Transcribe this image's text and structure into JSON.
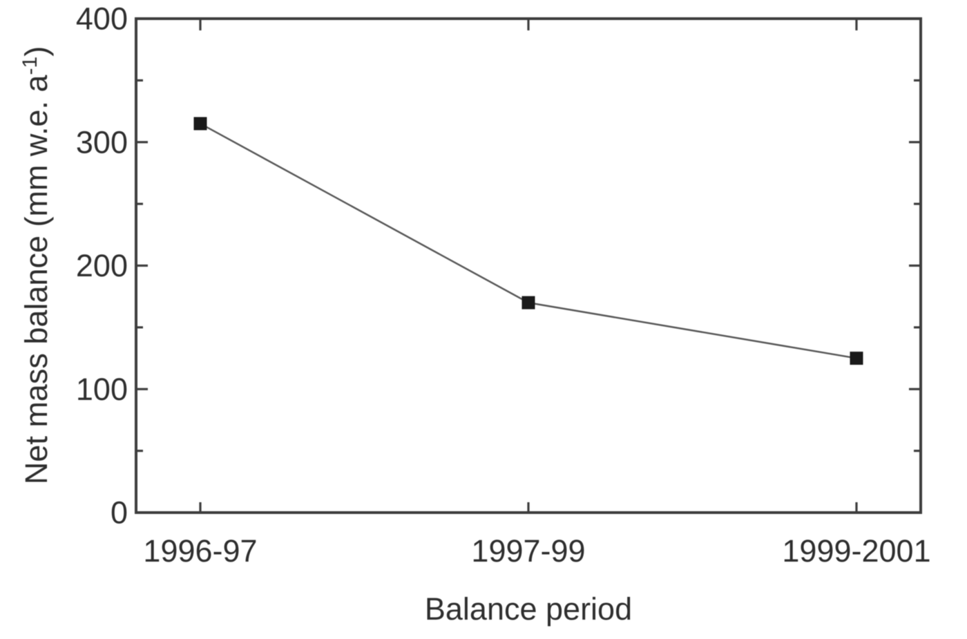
{
  "figure": {
    "background_color": "#ffffff"
  },
  "chart_data": {
    "type": "line",
    "title": "",
    "xlabel": "Balance period",
    "ylabel": "Net mass balance (mm w.e. a⁻¹)",
    "ylabel_parts": {
      "pre": "Net mass balance (mm w.e. a",
      "sup": "-1",
      "post": ")"
    },
    "categories": [
      "1996-97",
      "1997-99",
      "1999-2001"
    ],
    "values": [
      315,
      170,
      125
    ],
    "ylim": [
      0,
      400
    ],
    "yticks_major": [
      0,
      100,
      200,
      300,
      400
    ],
    "ytick_minor_step": 50,
    "grid": false,
    "legend": "none",
    "marker": "filled-square",
    "line_style": "solid",
    "colors": {
      "background": "#ffffff",
      "frame": "#3d3d3d",
      "tick": "#3d3d3d",
      "data_line": "#585858",
      "marker": "#1a1a1a",
      "text": "#2e2e2e"
    }
  }
}
